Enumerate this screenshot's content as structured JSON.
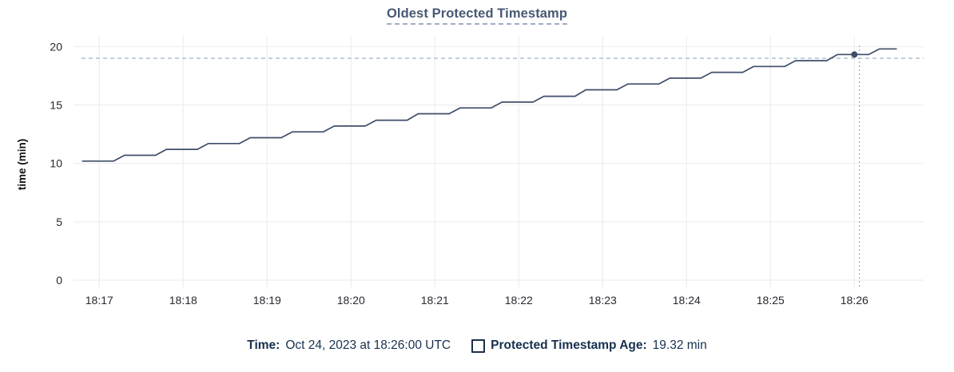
{
  "title": "Oldest Protected Timestamp",
  "colors": {
    "line": "#3e4e69",
    "dot": "#3e4e69",
    "grid": "#f0f0f0",
    "crosshair": "#9fb3c8",
    "title_text": "#475872",
    "legend_text": "#17304f",
    "tick_text": "#26292e"
  },
  "footer": {
    "time_label": "Time:",
    "time_value": "Oct 24, 2023 at 18:26:00 UTC",
    "series_label": "Protected Timestamp Age:",
    "series_value": "19.32 min"
  },
  "chart_data": {
    "type": "line",
    "title": "Oldest Protected Timestamp",
    "xlabel": "",
    "ylabel": "time (min)",
    "ylim": [
      0,
      20
    ],
    "y_ticks": [
      0,
      5,
      10,
      15,
      20
    ],
    "x_tick_labels": [
      "18:17",
      "18:18",
      "18:19",
      "18:20",
      "18:21",
      "18:22",
      "18:23",
      "18:24",
      "18:25",
      "18:26"
    ],
    "x_tick_minutes": [
      0,
      1,
      2,
      3,
      4,
      5,
      6,
      7,
      8,
      9
    ],
    "x_unit": "minutes after 18:17",
    "grid": true,
    "legend_position": "bottom",
    "series": [
      {
        "name": "Protected Timestamp Age",
        "unit": "min",
        "points": [
          [
            -0.2,
            10.2
          ],
          [
            0.17,
            10.2
          ],
          [
            0.3,
            10.7
          ],
          [
            0.67,
            10.7
          ],
          [
            0.8,
            11.2
          ],
          [
            1.17,
            11.2
          ],
          [
            1.3,
            11.7
          ],
          [
            1.67,
            11.7
          ],
          [
            1.8,
            12.2
          ],
          [
            2.17,
            12.2
          ],
          [
            2.3,
            12.7
          ],
          [
            2.67,
            12.7
          ],
          [
            2.8,
            13.2
          ],
          [
            3.17,
            13.2
          ],
          [
            3.3,
            13.7
          ],
          [
            3.67,
            13.7
          ],
          [
            3.8,
            14.25
          ],
          [
            4.17,
            14.25
          ],
          [
            4.3,
            14.75
          ],
          [
            4.67,
            14.75
          ],
          [
            4.8,
            15.25
          ],
          [
            5.17,
            15.25
          ],
          [
            5.3,
            15.75
          ],
          [
            5.67,
            15.75
          ],
          [
            5.8,
            16.3
          ],
          [
            6.17,
            16.3
          ],
          [
            6.3,
            16.8
          ],
          [
            6.67,
            16.8
          ],
          [
            6.8,
            17.3
          ],
          [
            7.17,
            17.3
          ],
          [
            7.3,
            17.8
          ],
          [
            7.67,
            17.8
          ],
          [
            7.8,
            18.3
          ],
          [
            8.17,
            18.3
          ],
          [
            8.3,
            18.8
          ],
          [
            8.67,
            18.8
          ],
          [
            8.8,
            19.32
          ],
          [
            9.17,
            19.32
          ],
          [
            9.3,
            19.8
          ],
          [
            9.5,
            19.8
          ]
        ]
      }
    ],
    "hover": {
      "point_m": 9.0,
      "point_value": 19.32,
      "point_time_label": "18:26:00",
      "crosshair_m": 9.06,
      "crosshair_value": 19.0
    }
  }
}
